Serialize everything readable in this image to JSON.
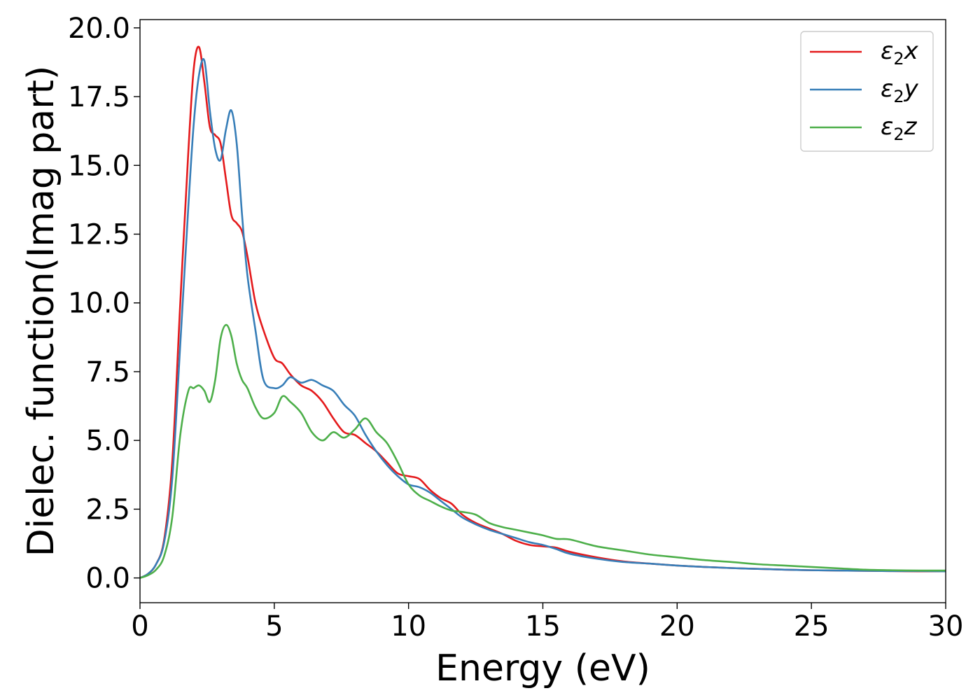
{
  "chart_data": {
    "type": "line",
    "title": "",
    "xlabel": "Energy (eV)",
    "ylabel": "Dielec. function(Imag part)",
    "xlim": [
      0,
      30
    ],
    "ylim": [
      -0.9,
      20.3
    ],
    "xticks": [
      0,
      5,
      10,
      15,
      20,
      25,
      30
    ],
    "xtick_labels": [
      "0",
      "5",
      "10",
      "15",
      "20",
      "25",
      "30"
    ],
    "yticks": [
      0,
      2.5,
      5,
      7.5,
      10,
      12.5,
      15,
      17.5,
      20
    ],
    "ytick_labels": [
      "0.0",
      "2.5",
      "5.0",
      "7.5",
      "10.0",
      "12.5",
      "15.0",
      "17.5",
      "20.0"
    ],
    "grid": false,
    "legend_position": "top-right",
    "series": [
      {
        "name": "ε₂x",
        "legend_base": "ε",
        "legend_sub": "2",
        "legend_suffix": "x",
        "color": "#e41a1c",
        "x": [
          0,
          0.3,
          0.6,
          0.9,
          1.2,
          1.5,
          1.8,
          2.0,
          2.2,
          2.4,
          2.6,
          2.8,
          3.0,
          3.2,
          3.4,
          3.6,
          3.8,
          4.0,
          4.3,
          4.6,
          5.0,
          5.3,
          5.6,
          6.0,
          6.4,
          6.8,
          7.2,
          7.6,
          8.0,
          8.4,
          8.8,
          9.2,
          9.6,
          10.0,
          10.4,
          10.8,
          11.2,
          11.6,
          12.0,
          12.5,
          13.0,
          13.5,
          14.0,
          14.5,
          15.0,
          15.5,
          16.0,
          17.0,
          18.0,
          19.0,
          20.0,
          21.0,
          22.0,
          23.0,
          24.0,
          25.0,
          26.0,
          27.0,
          28.0,
          29.0,
          30.0
        ],
        "y": [
          0.0,
          0.15,
          0.5,
          1.4,
          4.2,
          10.0,
          15.5,
          18.5,
          19.3,
          18.0,
          16.4,
          16.1,
          15.8,
          14.5,
          13.2,
          12.9,
          12.6,
          11.7,
          10.0,
          9.0,
          8.0,
          7.8,
          7.4,
          7.0,
          6.8,
          6.4,
          5.8,
          5.3,
          5.2,
          4.9,
          4.6,
          4.2,
          3.8,
          3.7,
          3.6,
          3.2,
          2.9,
          2.7,
          2.3,
          2.0,
          1.8,
          1.6,
          1.35,
          1.2,
          1.15,
          1.1,
          0.95,
          0.75,
          0.6,
          0.52,
          0.45,
          0.4,
          0.36,
          0.33,
          0.3,
          0.28,
          0.27,
          0.26,
          0.25,
          0.24,
          0.24
        ]
      },
      {
        "name": "ε₂y",
        "legend_base": "ε",
        "legend_sub": "2",
        "legend_suffix": "y",
        "color": "#377eb8",
        "x": [
          0,
          0.3,
          0.6,
          0.9,
          1.2,
          1.5,
          1.8,
          2.0,
          2.2,
          2.4,
          2.6,
          2.8,
          3.0,
          3.2,
          3.4,
          3.6,
          3.8,
          4.0,
          4.3,
          4.6,
          5.0,
          5.3,
          5.6,
          6.0,
          6.4,
          6.8,
          7.2,
          7.6,
          8.0,
          8.4,
          8.8,
          9.2,
          9.6,
          10.0,
          10.4,
          10.8,
          11.2,
          11.6,
          12.0,
          12.5,
          13.0,
          13.5,
          14.0,
          14.5,
          15.0,
          15.5,
          16.0,
          17.0,
          18.0,
          19.0,
          20.0,
          21.0,
          22.0,
          23.0,
          24.0,
          25.0,
          26.0,
          27.0,
          28.0,
          29.0,
          30.0
        ],
        "y": [
          0.0,
          0.15,
          0.5,
          1.3,
          3.6,
          8.5,
          13.5,
          16.5,
          18.3,
          18.8,
          17.0,
          15.6,
          15.2,
          16.3,
          17.0,
          15.8,
          13.2,
          11.0,
          9.0,
          7.2,
          6.9,
          7.0,
          7.3,
          7.1,
          7.2,
          7.0,
          6.8,
          6.3,
          5.9,
          5.2,
          4.6,
          4.1,
          3.7,
          3.4,
          3.3,
          3.1,
          2.8,
          2.5,
          2.2,
          1.95,
          1.75,
          1.6,
          1.45,
          1.3,
          1.2,
          1.05,
          0.88,
          0.7,
          0.58,
          0.52,
          0.45,
          0.4,
          0.36,
          0.33,
          0.3,
          0.28,
          0.27,
          0.26,
          0.25,
          0.25,
          0.24
        ]
      },
      {
        "name": "ε₂z",
        "legend_base": "ε",
        "legend_sub": "2",
        "legend_suffix": "z",
        "color": "#4daf4a",
        "x": [
          0,
          0.3,
          0.6,
          0.9,
          1.2,
          1.5,
          1.8,
          2.0,
          2.2,
          2.4,
          2.6,
          2.8,
          3.0,
          3.2,
          3.4,
          3.6,
          3.8,
          4.0,
          4.3,
          4.6,
          5.0,
          5.3,
          5.6,
          6.0,
          6.4,
          6.8,
          7.2,
          7.6,
          8.0,
          8.4,
          8.8,
          9.2,
          9.6,
          10.0,
          10.4,
          10.8,
          11.2,
          11.6,
          12.0,
          12.5,
          13.0,
          13.5,
          14.0,
          14.5,
          15.0,
          15.5,
          16.0,
          17.0,
          18.0,
          19.0,
          20.0,
          21.0,
          22.0,
          23.0,
          24.0,
          25.0,
          26.0,
          27.0,
          28.0,
          29.0,
          30.0
        ],
        "y": [
          0.0,
          0.1,
          0.3,
          0.8,
          2.2,
          5.2,
          6.8,
          6.9,
          7.0,
          6.8,
          6.4,
          7.2,
          8.7,
          9.2,
          8.8,
          7.8,
          7.2,
          6.9,
          6.2,
          5.8,
          6.0,
          6.6,
          6.4,
          6.0,
          5.3,
          5.0,
          5.3,
          5.1,
          5.4,
          5.8,
          5.3,
          4.9,
          4.2,
          3.4,
          3.0,
          2.8,
          2.6,
          2.45,
          2.4,
          2.3,
          2.0,
          1.85,
          1.75,
          1.65,
          1.55,
          1.42,
          1.4,
          1.15,
          1.0,
          0.85,
          0.75,
          0.65,
          0.58,
          0.5,
          0.45,
          0.4,
          0.35,
          0.3,
          0.28,
          0.27,
          0.27
        ]
      }
    ]
  }
}
